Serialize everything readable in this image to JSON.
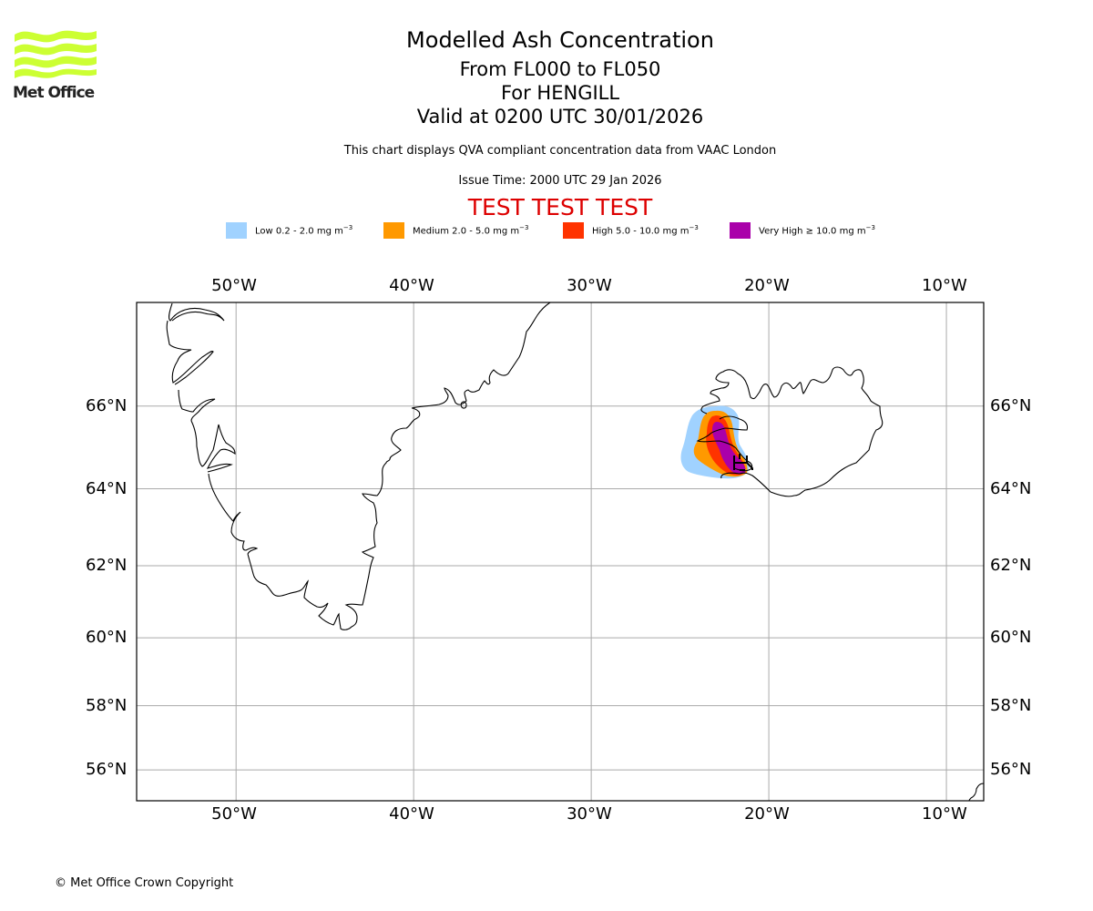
{
  "logo": {
    "text": "Met Office",
    "color": "#ccff33"
  },
  "header": {
    "title": "Modelled Ash Concentration",
    "levels": "From FL000 to FL050",
    "volcano": "For HENGILL",
    "valid": "Valid at 0200 UTC 30/01/2026",
    "description": "This chart displays QVA compliant concentration data from VAAC London",
    "issue_time": "Issue Time: 2000 UTC 29 Jan 2026",
    "test_banner": "TEST TEST TEST"
  },
  "legend": [
    {
      "label": "Low 0.2 - 2.0 mg m",
      "unit_exp": "−3",
      "color": "#a0d2ff"
    },
    {
      "label": "Medium 2.0 - 5.0 mg m",
      "unit_exp": "−3",
      "color": "#ff9900"
    },
    {
      "label": "High 5.0 - 10.0 mg m",
      "unit_exp": "−3",
      "color": "#ff3300"
    },
    {
      "label": "Very High  ≥  10.0 mg m",
      "unit_exp": "−3",
      "color": "#aa00aa"
    }
  ],
  "map": {
    "lon_range": [
      -55.6,
      -7.9
    ],
    "lat_range": [
      55.0,
      68.3
    ],
    "lon_ticks": [
      {
        "value": -50,
        "label": "50°W"
      },
      {
        "value": -40,
        "label": "40°W"
      },
      {
        "value": -30,
        "label": "30°W"
      },
      {
        "value": -20,
        "label": "20°W"
      },
      {
        "value": -10,
        "label": "10°W"
      }
    ],
    "lat_ticks": [
      {
        "value": 66,
        "label": "66°N"
      },
      {
        "value": 64,
        "label": "64°N"
      },
      {
        "value": 62,
        "label": "62°N"
      },
      {
        "value": 60,
        "label": "60°N"
      },
      {
        "value": 58,
        "label": "58°N"
      },
      {
        "value": 56,
        "label": "56°N"
      }
    ],
    "gridline_color": "#aaaaaa",
    "coastline_color": "#000000"
  },
  "footer": {
    "copyright": "© Met Office Crown Copyright"
  }
}
